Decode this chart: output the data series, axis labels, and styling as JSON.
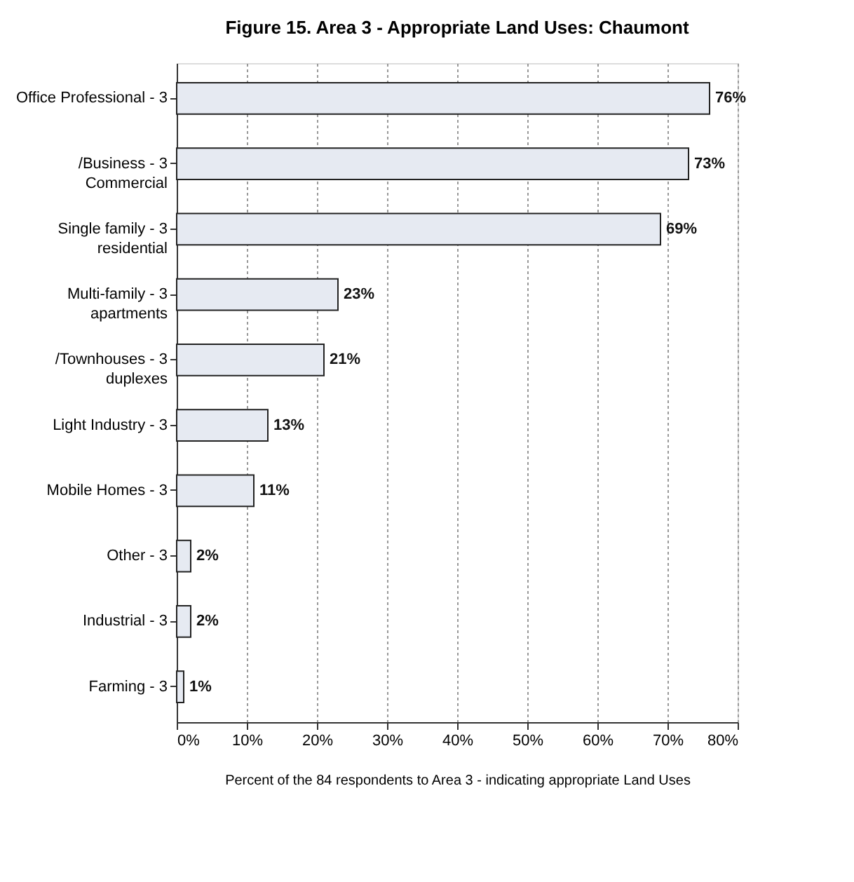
{
  "chart_data": {
    "type": "bar",
    "orientation": "horizontal",
    "title": "Figure 15.  Area 3 - Appropriate Land Uses: Chaumont",
    "xlabel": "Percent of the 84 respondents to Area 3 - indicating appropriate Land Uses",
    "categories": [
      "Office Professional - 3",
      "/Business - 3\nCommercial",
      "Single family - 3\nresidential",
      "Multi-family - 3\napartments",
      "/Townhouses - 3\nduplexes",
      "Light Industry - 3",
      "Mobile Homes - 3",
      "Other - 3",
      "Industrial - 3",
      "Farming - 3"
    ],
    "values": [
      76,
      73,
      69,
      23,
      21,
      13,
      11,
      2,
      2,
      1
    ],
    "value_labels": [
      "76%",
      "73%",
      "69%",
      "23%",
      "21%",
      "13%",
      "11%",
      "2%",
      "2%",
      "1%"
    ],
    "color": "#e6eaf2",
    "xlim": [
      0,
      80
    ],
    "xticks": [
      {
        "value": 0,
        "label": "0%"
      },
      {
        "value": 10,
        "label": "10%"
      },
      {
        "value": 20,
        "label": "20%"
      },
      {
        "value": 30,
        "label": "30%"
      },
      {
        "value": 40,
        "label": "40%"
      },
      {
        "value": 50,
        "label": "50%"
      },
      {
        "value": 60,
        "label": "60%"
      },
      {
        "value": 70,
        "label": "70%"
      },
      {
        "value": 80,
        "label": "80%"
      }
    ],
    "grid": "x"
  }
}
